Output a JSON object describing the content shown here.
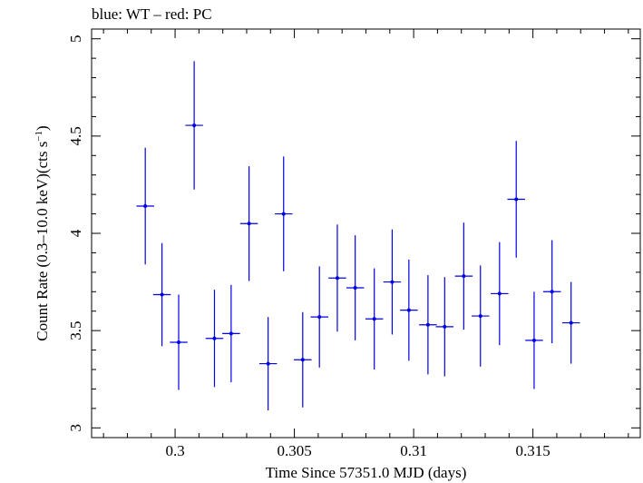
{
  "chart_data": {
    "type": "scatter",
    "title": "blue: WT – red: PC",
    "xlabel": "Time Since 57351.0 MJD (days)",
    "ylabel": "Count Rate (0.3–10.0 keV)(cts s",
    "ylabel_sup": "−1",
    "ylabel_tail": ")",
    "xlim": [
      0.2965,
      0.3195
    ],
    "ylim": [
      2.95,
      5.05
    ],
    "xticks": [
      {
        "value": 0.3,
        "label": "0.3"
      },
      {
        "value": 0.305,
        "label": "0.305"
      },
      {
        "value": 0.31,
        "label": "0.31"
      },
      {
        "value": 0.315,
        "label": "0.315"
      }
    ],
    "yticks": [
      {
        "value": 3,
        "label": "3"
      },
      {
        "value": 3.5,
        "label": "3.5"
      },
      {
        "value": 4,
        "label": "4"
      },
      {
        "value": 4.5,
        "label": "4.5"
      },
      {
        "value": 5,
        "label": "5"
      }
    ],
    "grid": false,
    "legend": "none",
    "series": [
      {
        "color": "#0000e6",
        "points": [
          {
            "x": 0.29875,
            "xerr": 0.00037,
            "y": 4.14,
            "yerr": 0.3
          },
          {
            "x": 0.29945,
            "xerr": 0.00037,
            "y": 3.685,
            "yerr": 0.265
          },
          {
            "x": 0.30015,
            "xerr": 0.00037,
            "y": 3.44,
            "yerr": 0.245
          },
          {
            "x": 0.3008,
            "xerr": 0.00037,
            "y": 4.555,
            "yerr": 0.33
          },
          {
            "x": 0.30165,
            "xerr": 0.00037,
            "y": 3.46,
            "yerr": 0.25
          },
          {
            "x": 0.30235,
            "xerr": 0.00037,
            "y": 3.485,
            "yerr": 0.25
          },
          {
            "x": 0.3031,
            "xerr": 0.00037,
            "y": 4.05,
            "yerr": 0.295
          },
          {
            "x": 0.3039,
            "xerr": 0.00037,
            "y": 3.33,
            "yerr": 0.24
          },
          {
            "x": 0.30455,
            "xerr": 0.00037,
            "y": 4.1,
            "yerr": 0.295
          },
          {
            "x": 0.30535,
            "xerr": 0.00037,
            "y": 3.35,
            "yerr": 0.245
          },
          {
            "x": 0.30605,
            "xerr": 0.00037,
            "y": 3.57,
            "yerr": 0.26
          },
          {
            "x": 0.3068,
            "xerr": 0.00037,
            "y": 3.77,
            "yerr": 0.275
          },
          {
            "x": 0.30755,
            "xerr": 0.00037,
            "y": 3.72,
            "yerr": 0.27
          },
          {
            "x": 0.30835,
            "xerr": 0.00037,
            "y": 3.56,
            "yerr": 0.26
          },
          {
            "x": 0.3091,
            "xerr": 0.00037,
            "y": 3.75,
            "yerr": 0.27
          },
          {
            "x": 0.3098,
            "xerr": 0.00037,
            "y": 3.605,
            "yerr": 0.26
          },
          {
            "x": 0.3106,
            "xerr": 0.00037,
            "y": 3.53,
            "yerr": 0.255
          },
          {
            "x": 0.3113,
            "xerr": 0.00037,
            "y": 3.52,
            "yerr": 0.255
          },
          {
            "x": 0.3121,
            "xerr": 0.00037,
            "y": 3.78,
            "yerr": 0.275
          },
          {
            "x": 0.3128,
            "xerr": 0.00037,
            "y": 3.575,
            "yerr": 0.26
          },
          {
            "x": 0.3136,
            "xerr": 0.00037,
            "y": 3.69,
            "yerr": 0.265
          },
          {
            "x": 0.3143,
            "xerr": 0.00037,
            "y": 4.175,
            "yerr": 0.3
          },
          {
            "x": 0.31505,
            "xerr": 0.00037,
            "y": 3.45,
            "yerr": 0.25
          },
          {
            "x": 0.3158,
            "xerr": 0.00037,
            "y": 3.7,
            "yerr": 0.265
          },
          {
            "x": 0.3166,
            "xerr": 0.00037,
            "y": 3.54,
            "yerr": 0.21
          }
        ]
      }
    ]
  }
}
